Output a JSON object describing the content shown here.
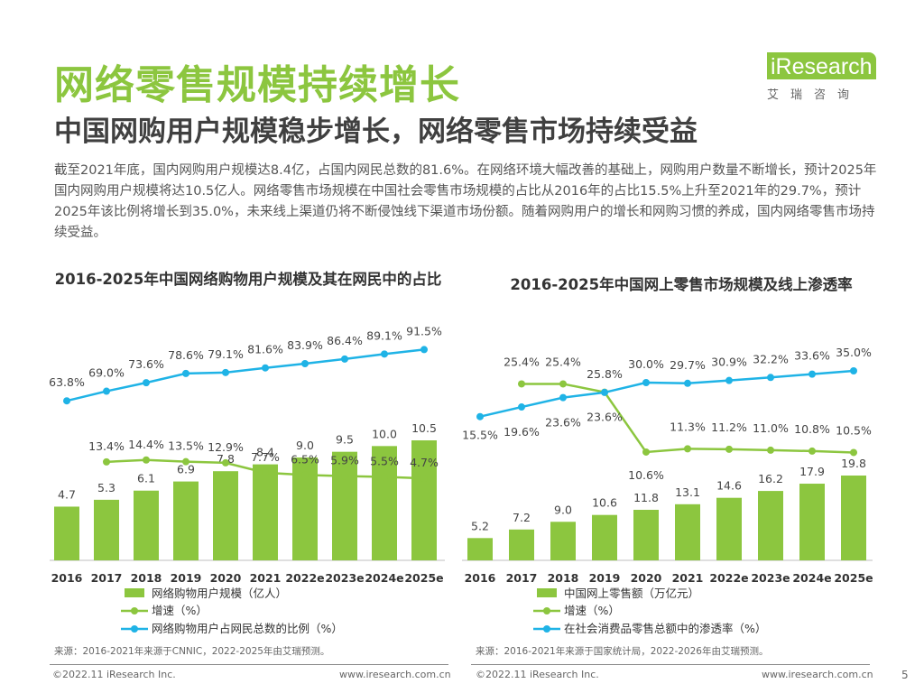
{
  "header": {
    "title": "网络零售规模持续增长",
    "subtitle": "中国网购用户规模稳步增长，网络零售市场持续受益",
    "logo_text": "iResearch",
    "logo_cn": "艾瑞咨询",
    "body": "截至2021年底，国内网购用户规模达8.4亿，占国内网民总数的81.6%。在网络环境大幅改善的基础上，网购用户数量不断增长，预计2025年国内网购用户规模将达10.5亿人。网络零售市场规模在中国社会零售市场规模的占比从2016年的占比15.5%上升至2021年的29.7%，预计2025年该比例将增长到35.0%，未来线上渠道仍将不断侵蚀线下渠道市场份额。随着网购用户的增长和网购习惯的养成，国内网络零售市场持续受益。"
  },
  "colors": {
    "green": "#8cc63f",
    "blue": "#1fb3e6",
    "title_green": "#8cc63f"
  },
  "chart_data": [
    {
      "type": "bar",
      "title": "2016-2025年中国网络购物用户规模及其在网民中的占比",
      "categories": [
        "2016",
        "2017",
        "2018",
        "2019",
        "2020",
        "2021",
        "2022e",
        "2023e",
        "2024e",
        "2025e"
      ],
      "series": [
        {
          "name": "网络购物用户规模（亿人）",
          "type": "bar",
          "values": [
            4.7,
            5.3,
            6.1,
            6.9,
            7.8,
            8.4,
            9.0,
            9.5,
            10.0,
            10.5
          ],
          "labels": [
            "4.7",
            "5.3",
            "6.1",
            "6.9",
            "7.8",
            "8.4",
            "9.0",
            "9.5",
            "10.0",
            "10.5"
          ]
        },
        {
          "name": "增速（%）",
          "type": "line",
          "values": [
            null,
            13.4,
            14.4,
            13.5,
            12.9,
            7.7,
            6.5,
            5.9,
            5.5,
            4.7
          ],
          "labels": [
            "",
            "13.4%",
            "14.4%",
            "13.5%",
            "12.9%",
            "7.7%",
            "6.5%",
            "5.9%",
            "5.5%",
            "4.7%"
          ]
        },
        {
          "name": "网络购物用户占网民总数的比例（%）",
          "type": "line",
          "values": [
            63.8,
            69.0,
            73.6,
            78.6,
            79.1,
            81.6,
            83.9,
            86.4,
            89.1,
            91.5
          ],
          "labels": [
            "63.8%",
            "69.0%",
            "73.6%",
            "78.6%",
            "79.1%",
            "81.6%",
            "83.9%",
            "86.4%",
            "89.1%",
            "91.5%"
          ]
        }
      ],
      "legend_position": "bottom",
      "source": "来源：2016-2021年来源于CNNIC，2022-2025年由艾瑞预测。"
    },
    {
      "type": "bar",
      "title": "2016-2025年中国网上零售市场规模及线上渗透率",
      "categories": [
        "2016",
        "2017",
        "2018",
        "2019",
        "2020",
        "2021",
        "2022e",
        "2023e",
        "2024e",
        "2025e"
      ],
      "series": [
        {
          "name": "中国网上零售额（万亿元）",
          "type": "bar",
          "values": [
            5.2,
            7.2,
            9.0,
            10.6,
            11.8,
            13.1,
            14.6,
            16.2,
            17.9,
            19.8
          ],
          "labels": [
            "5.2",
            "7.2",
            "9.0",
            "10.6",
            "11.8",
            "13.1",
            "14.6",
            "16.2",
            "17.9",
            "19.8"
          ]
        },
        {
          "name": "增速（%）",
          "type": "line",
          "values": [
            null,
            25.4,
            25.4,
            23.6,
            10.6,
            11.3,
            11.2,
            11.0,
            10.8,
            10.5
          ],
          "labels": [
            "",
            "25.4%",
            "25.4%",
            "23.6%",
            "10.6%",
            "11.3%",
            "11.2%",
            "11.0%",
            "10.8%",
            "10.5%"
          ]
        },
        {
          "name": "在社会消费品零售总额中的渗透率（%）",
          "type": "line",
          "values": [
            15.5,
            19.6,
            23.6,
            25.8,
            30.0,
            29.7,
            30.9,
            32.2,
            33.6,
            35.0
          ],
          "labels": [
            "15.5%",
            "19.6%",
            "23.6%",
            "25.8%",
            "30.0%",
            "29.7%",
            "30.9%",
            "32.2%",
            "33.6%",
            "35.0%"
          ]
        }
      ],
      "legend_position": "bottom",
      "source": "来源：2016-2021年来源于国家统计局，2022-2026年由艾瑞预测。"
    }
  ],
  "footer": {
    "copyright": "©2022.11 iResearch Inc.",
    "website": "www.iresearch.com.cn",
    "page_number": "5"
  }
}
